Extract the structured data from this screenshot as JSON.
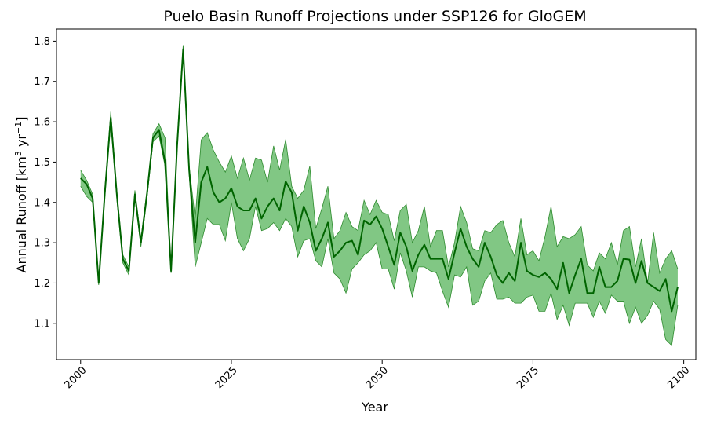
{
  "chart_data": {
    "type": "area",
    "title": "Puelo Basin Runoff Projections under SSP126 for GloGEM",
    "xlabel": "Year",
    "ylabel_main": "Annual Runoff [km",
    "ylabel_sup1": "3",
    "ylabel_mid": " yr",
    "ylabel_sup2": "−1",
    "ylabel_end": "]",
    "xlim": [
      1996,
      2102
    ],
    "ylim": [
      1.01,
      1.83
    ],
    "x_ticks": [
      2000,
      2025,
      2050,
      2075,
      2100
    ],
    "x_tick_labels": [
      "2000",
      "2025",
      "2050",
      "2075",
      "2100"
    ],
    "y_ticks": [
      1.1,
      1.2,
      1.3,
      1.4,
      1.5,
      1.6,
      1.7,
      1.8
    ],
    "y_tick_labels": [
      "1.1",
      "1.2",
      "1.3",
      "1.4",
      "1.5",
      "1.6",
      "1.7",
      "1.8"
    ],
    "line_color": "#006400",
    "fill_color": "#4caf50",
    "grid": false,
    "series": [
      {
        "x": [
          2000,
          2001,
          2002,
          2003,
          2004,
          2005,
          2006,
          2007,
          2008,
          2009,
          2010,
          2011,
          2012,
          2013,
          2014,
          2015,
          2016,
          2017,
          2018,
          2019,
          2020,
          2021,
          2022,
          2023,
          2024,
          2025,
          2026,
          2027,
          2028,
          2029,
          2030,
          2031,
          2032,
          2033,
          2034,
          2035,
          2036,
          2037,
          2038,
          2039,
          2040,
          2041,
          2042,
          2043,
          2044,
          2045,
          2046,
          2047,
          2048,
          2049,
          2050,
          2051,
          2052,
          2053,
          2054,
          2055,
          2056,
          2057,
          2058,
          2059,
          2060,
          2061,
          2062,
          2063,
          2064,
          2065,
          2066,
          2067,
          2068,
          2069,
          2070,
          2071,
          2072,
          2073,
          2074,
          2075,
          2076,
          2077,
          2078,
          2079,
          2080,
          2081,
          2082,
          2083,
          2084,
          2085,
          2086,
          2087,
          2088,
          2089,
          2090,
          2091,
          2092,
          2093,
          2094,
          2095,
          2096,
          2097,
          2098,
          2099
        ],
        "mean": [
          1.46,
          1.445,
          1.41,
          1.2,
          1.42,
          1.61,
          1.42,
          1.26,
          1.23,
          1.42,
          1.3,
          1.42,
          1.56,
          1.58,
          1.5,
          1.23,
          1.54,
          1.78,
          1.48,
          1.3,
          1.45,
          1.488,
          1.425,
          1.4,
          1.41,
          1.435,
          1.39,
          1.38,
          1.38,
          1.41,
          1.36,
          1.39,
          1.41,
          1.38,
          1.452,
          1.425,
          1.33,
          1.39,
          1.35,
          1.28,
          1.31,
          1.35,
          1.265,
          1.28,
          1.3,
          1.305,
          1.27,
          1.355,
          1.345,
          1.365,
          1.335,
          1.29,
          1.245,
          1.325,
          1.29,
          1.23,
          1.27,
          1.295,
          1.26,
          1.26,
          1.26,
          1.21,
          1.275,
          1.335,
          1.29,
          1.26,
          1.24,
          1.3,
          1.265,
          1.22,
          1.2,
          1.225,
          1.205,
          1.3,
          1.23,
          1.22,
          1.215,
          1.225,
          1.21,
          1.185,
          1.25,
          1.175,
          1.22,
          1.26,
          1.175,
          1.175,
          1.24,
          1.19,
          1.19,
          1.205,
          1.26,
          1.258,
          1.2,
          1.255,
          1.2,
          1.19,
          1.18,
          1.21,
          1.13,
          1.19
        ],
        "low": [
          1.44,
          1.415,
          1.4,
          1.195,
          1.41,
          1.6,
          1.41,
          1.25,
          1.22,
          1.41,
          1.29,
          1.41,
          1.55,
          1.565,
          1.49,
          1.225,
          1.53,
          1.77,
          1.47,
          1.24,
          1.3,
          1.36,
          1.345,
          1.345,
          1.305,
          1.4,
          1.31,
          1.28,
          1.31,
          1.39,
          1.33,
          1.335,
          1.35,
          1.33,
          1.36,
          1.34,
          1.265,
          1.305,
          1.31,
          1.255,
          1.24,
          1.31,
          1.225,
          1.21,
          1.175,
          1.235,
          1.25,
          1.27,
          1.28,
          1.3,
          1.235,
          1.235,
          1.185,
          1.275,
          1.23,
          1.165,
          1.24,
          1.24,
          1.23,
          1.225,
          1.18,
          1.14,
          1.22,
          1.215,
          1.24,
          1.145,
          1.155,
          1.205,
          1.225,
          1.16,
          1.16,
          1.165,
          1.15,
          1.15,
          1.165,
          1.17,
          1.13,
          1.13,
          1.175,
          1.11,
          1.145,
          1.095,
          1.15,
          1.15,
          1.15,
          1.115,
          1.155,
          1.125,
          1.17,
          1.155,
          1.155,
          1.1,
          1.14,
          1.1,
          1.12,
          1.155,
          1.135,
          1.06,
          1.045,
          1.145
        ],
        "high": [
          1.48,
          1.455,
          1.42,
          1.205,
          1.43,
          1.625,
          1.43,
          1.27,
          1.24,
          1.43,
          1.31,
          1.43,
          1.57,
          1.595,
          1.56,
          1.235,
          1.55,
          1.79,
          1.49,
          1.36,
          1.555,
          1.573,
          1.53,
          1.5,
          1.475,
          1.515,
          1.46,
          1.51,
          1.455,
          1.51,
          1.505,
          1.45,
          1.54,
          1.48,
          1.556,
          1.44,
          1.41,
          1.43,
          1.49,
          1.335,
          1.385,
          1.44,
          1.31,
          1.33,
          1.375,
          1.34,
          1.33,
          1.405,
          1.37,
          1.405,
          1.375,
          1.37,
          1.305,
          1.38,
          1.395,
          1.3,
          1.33,
          1.39,
          1.29,
          1.33,
          1.33,
          1.24,
          1.3,
          1.39,
          1.35,
          1.285,
          1.28,
          1.33,
          1.325,
          1.345,
          1.355,
          1.3,
          1.265,
          1.36,
          1.27,
          1.28,
          1.255,
          1.315,
          1.39,
          1.29,
          1.315,
          1.31,
          1.32,
          1.34,
          1.245,
          1.23,
          1.275,
          1.26,
          1.3,
          1.245,
          1.33,
          1.34,
          1.24,
          1.31,
          1.2,
          1.325,
          1.225,
          1.26,
          1.28,
          1.235
        ]
      }
    ]
  }
}
